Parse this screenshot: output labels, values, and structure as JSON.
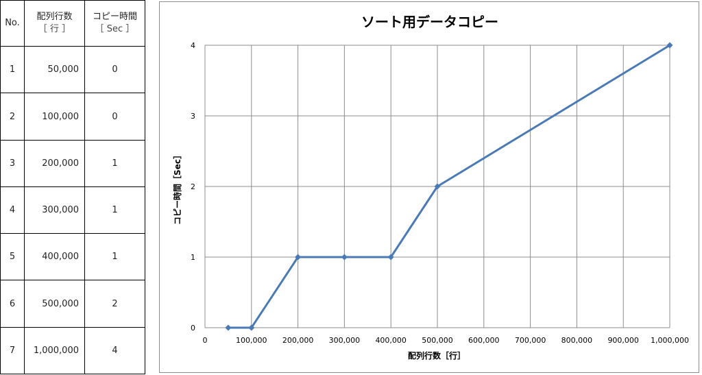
{
  "table": {
    "headers": [
      {
        "line1": "No.",
        "line2": ""
      },
      {
        "line1": "配列行数",
        "line2": "［ 行 ］"
      },
      {
        "line1": "コピー時間",
        "line2": "［ Sec ］"
      }
    ],
    "rows": [
      {
        "no": "1",
        "rows": "50,000",
        "sec": "0"
      },
      {
        "no": "2",
        "rows": "100,000",
        "sec": "0"
      },
      {
        "no": "3",
        "rows": "200,000",
        "sec": "1"
      },
      {
        "no": "4",
        "rows": "300,000",
        "sec": "1"
      },
      {
        "no": "5",
        "rows": "400,000",
        "sec": "1"
      },
      {
        "no": "6",
        "rows": "500,000",
        "sec": "2"
      },
      {
        "no": "7",
        "rows": "1,000,000",
        "sec": "4"
      }
    ]
  },
  "chart_data": {
    "type": "line",
    "title": "ソート用データコピー",
    "xlabel": "配列行数［行］",
    "ylabel": "コピー時間［Sec］",
    "x": [
      50000,
      100000,
      200000,
      300000,
      400000,
      500000,
      1000000
    ],
    "series": [
      {
        "values": [
          0,
          0,
          1,
          1,
          1,
          2,
          4
        ]
      }
    ],
    "xlim": [
      0,
      1000000
    ],
    "ylim": [
      0,
      4
    ],
    "x_ticks": [
      "0",
      "100,000",
      "200,000",
      "300,000",
      "400,000",
      "500,000",
      "600,000",
      "700,000",
      "800,000",
      "900,000",
      "1,000,000"
    ],
    "y_ticks": [
      "0",
      "1",
      "2",
      "3",
      "4"
    ],
    "grid": true,
    "legend": "none",
    "line_color": "#4a7ab5",
    "grid_color": "#8c8c8c"
  }
}
